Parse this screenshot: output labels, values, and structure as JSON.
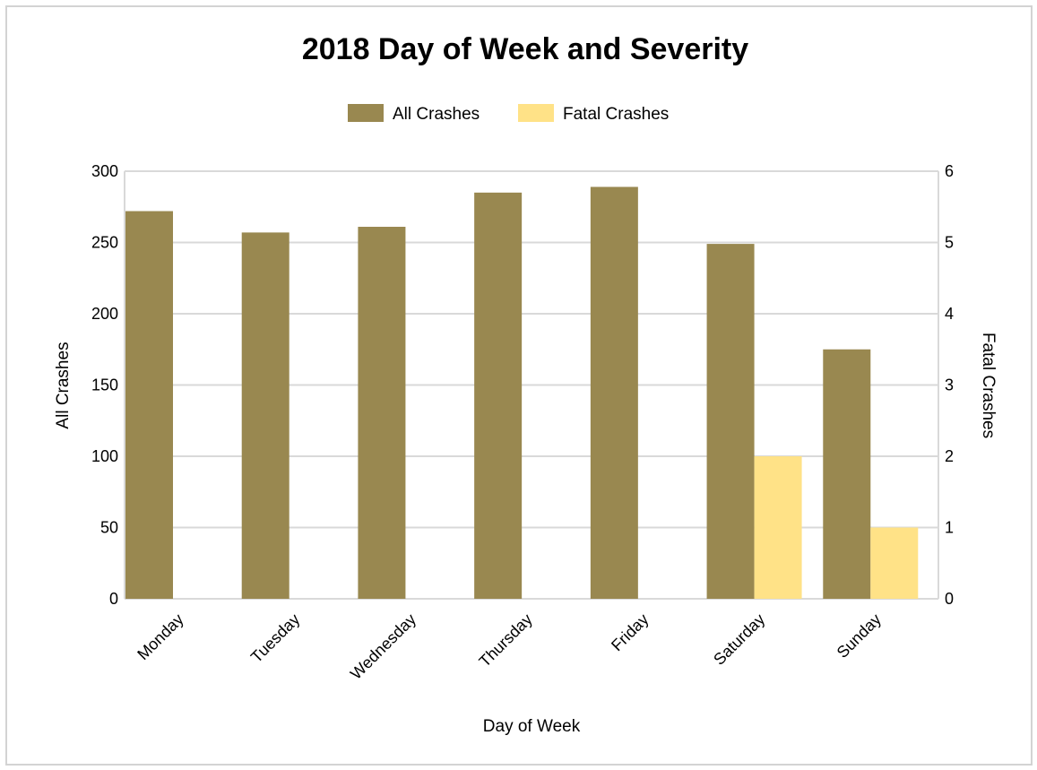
{
  "chart_data": {
    "type": "bar",
    "title": "2018 Day of Week and Severity",
    "xlabel": "Day of Week",
    "ylabel": "All Crashes",
    "y2label": "Fatal Crashes",
    "categories": [
      "Monday",
      "Tuesday",
      "Wednesday",
      "Thursday",
      "Friday",
      "Saturday",
      "Sunday"
    ],
    "series": [
      {
        "name": "All Crashes",
        "axis": "left",
        "color": "#998850",
        "values": [
          272,
          257,
          261,
          285,
          289,
          249,
          175
        ]
      },
      {
        "name": "Fatal Crashes",
        "axis": "right",
        "color": "#ffe287",
        "values": [
          0,
          0,
          0,
          0,
          0,
          2,
          1
        ]
      }
    ],
    "ylim": [
      0,
      300
    ],
    "y2lim": [
      0,
      6
    ],
    "yticks": [
      "0",
      "50",
      "100",
      "150",
      "200",
      "250",
      "300"
    ],
    "y2ticks": [
      "0",
      "1",
      "2",
      "3",
      "4",
      "5",
      "6"
    ],
    "legend_position": "top",
    "grid": true
  }
}
